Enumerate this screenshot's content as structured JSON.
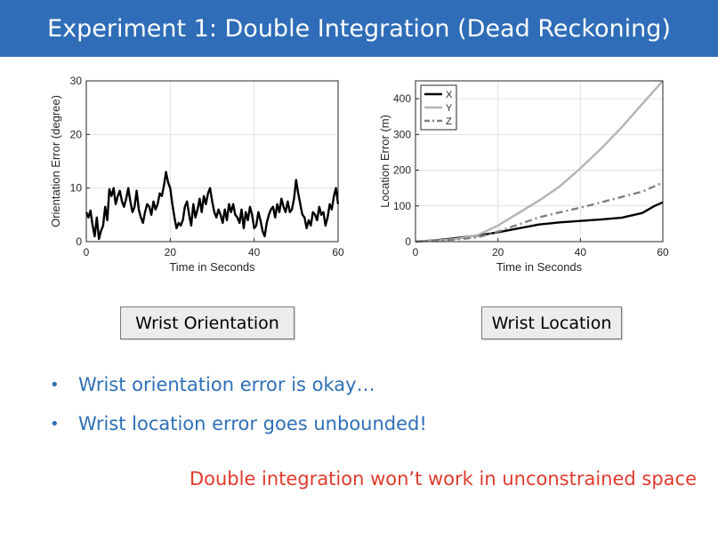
{
  "slide": {
    "title": "Experiment 1: Double Integration (Dead Reckoning)",
    "colors": {
      "title_bar": "#2f6db8",
      "bullet_text": "#2e6fb8",
      "conclusion_text": "#e03a2c"
    }
  },
  "captions": {
    "left": "Wrist Orientation",
    "right": "Wrist Location"
  },
  "bullets": [
    {
      "marker": "•",
      "text": "Wrist orientation error is okay…"
    },
    {
      "marker": "•",
      "text": "Wrist location error goes unbounded!"
    }
  ],
  "conclusion": "Double integration won’t work in unconstrained space",
  "chart_data": [
    {
      "type": "line",
      "title": "",
      "xlabel": "Time in Seconds",
      "ylabel": "Orientation Error (degree)",
      "xlim": [
        0,
        60
      ],
      "ylim": [
        0,
        30
      ],
      "xticks": [
        "0",
        "20",
        "40",
        "60"
      ],
      "yticks": [
        "0",
        "10",
        "20",
        "30"
      ],
      "grid": true,
      "series": [
        {
          "color": "#000000",
          "x": [
            0,
            0.5,
            1,
            1.5,
            2,
            2.5,
            3,
            3.5,
            4,
            4.5,
            5,
            5.5,
            6,
            6.5,
            7,
            7.5,
            8,
            8.5,
            9,
            9.5,
            10,
            10.5,
            11,
            11.5,
            12,
            12.5,
            13,
            13.5,
            14,
            14.5,
            15,
            15.5,
            16,
            16.5,
            17,
            17.5,
            18,
            18.5,
            19,
            19.5,
            20,
            20.5,
            21,
            21.5,
            22,
            22.5,
            23,
            23.5,
            24,
            24.5,
            25,
            25.5,
            26,
            26.5,
            27,
            27.5,
            28,
            28.5,
            29,
            29.5,
            30,
            30.5,
            31,
            31.5,
            32,
            32.5,
            33,
            33.5,
            34,
            34.5,
            35,
            35.5,
            36,
            36.5,
            37,
            37.5,
            38,
            38.5,
            39,
            39.5,
            40,
            40.5,
            41,
            41.5,
            42,
            42.5,
            43,
            43.5,
            44,
            44.5,
            45,
            45.5,
            46,
            46.5,
            47,
            47.5,
            48,
            48.5,
            49,
            49.5,
            50,
            50.5,
            51,
            51.5,
            52,
            52.5,
            53,
            53.5,
            54,
            54.5,
            55,
            55.5,
            56,
            56.5,
            57,
            57.5,
            58,
            58.5,
            59,
            59.5,
            60
          ],
          "y": [
            5.5,
            4.5,
            5.8,
            3.0,
            1.0,
            4.5,
            0.5,
            2.0,
            3.0,
            6.5,
            4.0,
            9.8,
            8.5,
            10.0,
            7.0,
            8.5,
            9.5,
            7.5,
            6.5,
            8.0,
            10.0,
            7.5,
            5.5,
            6.5,
            9.5,
            6.0,
            4.5,
            3.5,
            5.5,
            7.0,
            6.5,
            5.0,
            7.5,
            6.0,
            7.0,
            9.0,
            8.5,
            10.5,
            13.0,
            11.0,
            10.0,
            7.0,
            4.5,
            2.5,
            3.5,
            3.0,
            4.0,
            6.5,
            7.5,
            5.0,
            3.0,
            7.0,
            4.5,
            6.0,
            8.0,
            5.5,
            8.5,
            7.0,
            9.0,
            10.0,
            7.5,
            5.5,
            4.5,
            6.0,
            5.0,
            3.5,
            6.0,
            4.0,
            7.0,
            5.5,
            7.0,
            5.0,
            4.5,
            3.5,
            6.0,
            2.5,
            5.5,
            4.0,
            6.5,
            5.0,
            2.5,
            3.0,
            5.5,
            4.0,
            2.0,
            1.0,
            3.5,
            5.0,
            6.0,
            6.5,
            4.5,
            7.0,
            5.5,
            8.0,
            6.5,
            5.5,
            7.5,
            5.5,
            6.0,
            8.0,
            11.5,
            9.0,
            7.0,
            5.0,
            4.5,
            2.5,
            4.0,
            3.0,
            5.5,
            5.0,
            4.0,
            6.5,
            5.0,
            5.5,
            3.0,
            4.5,
            7.0,
            6.0,
            8.5,
            10.0,
            7.0
          ]
        }
      ]
    },
    {
      "type": "line",
      "title": "",
      "xlabel": "Time in Seconds",
      "ylabel": "Location Error (m)",
      "xlim": [
        0,
        60
      ],
      "ylim": [
        0,
        450
      ],
      "xticks": [
        "0",
        "20",
        "40",
        "60"
      ],
      "yticks": [
        "0",
        "100",
        "200",
        "300",
        "400"
      ],
      "grid": true,
      "legend": "top-left",
      "series": [
        {
          "name": "X",
          "color": "#000000",
          "dash": "solid",
          "x": [
            0,
            5,
            10,
            15,
            20,
            25,
            30,
            35,
            40,
            45,
            50,
            55,
            58,
            60
          ],
          "y": [
            0,
            4,
            10,
            17,
            26,
            37,
            48,
            54,
            58,
            62,
            67,
            80,
            100,
            110
          ]
        },
        {
          "name": "Y",
          "color": "#b4b4b4",
          "dash": "solid",
          "x": [
            0,
            5,
            10,
            15,
            20,
            25,
            30,
            35,
            40,
            45,
            50,
            55,
            60
          ],
          "y": [
            0,
            3,
            8,
            18,
            45,
            80,
            115,
            155,
            205,
            260,
            320,
            385,
            450
          ]
        },
        {
          "name": "Z",
          "color": "#808080",
          "dash": "dashdot",
          "x": [
            0,
            5,
            10,
            15,
            20,
            25,
            30,
            35,
            40,
            45,
            50,
            55,
            60
          ],
          "y": [
            0,
            3,
            6,
            12,
            28,
            48,
            68,
            82,
            95,
            110,
            125,
            140,
            165
          ]
        }
      ]
    }
  ]
}
